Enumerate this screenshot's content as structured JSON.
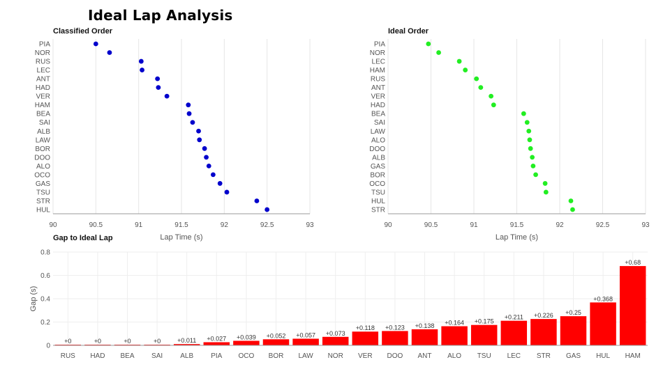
{
  "title": "Ideal Lap Analysis",
  "chart_data": [
    {
      "type": "scatter",
      "title": "Classified Order",
      "xlabel": "Lap Time (s)",
      "ylabel": "",
      "xlim": [
        90,
        93
      ],
      "xticks": [
        "90",
        "90.5",
        "91",
        "91.5",
        "92",
        "92.5",
        "93"
      ],
      "grid": true,
      "color": "#0000cc",
      "categories": [
        "PIA",
        "NOR",
        "RUS",
        "LEC",
        "ANT",
        "HAD",
        "VER",
        "HAM",
        "BEA",
        "SAI",
        "ALB",
        "LAW",
        "BOR",
        "DOO",
        "ALO",
        "OCO",
        "GAS",
        "TSU",
        "STR",
        "HUL"
      ],
      "values": [
        90.5,
        90.66,
        91.03,
        91.04,
        91.22,
        91.23,
        91.33,
        91.58,
        91.59,
        91.63,
        91.7,
        91.71,
        91.77,
        91.79,
        91.82,
        91.87,
        91.95,
        92.03,
        92.38,
        92.5
      ]
    },
    {
      "type": "scatter",
      "title": "Ideal Order",
      "xlabel": "Lap Time (s)",
      "ylabel": "",
      "xlim": [
        90,
        93
      ],
      "xticks": [
        "90",
        "90.5",
        "91",
        "91.5",
        "92",
        "92.5",
        "93"
      ],
      "grid": true,
      "color": "#22ee22",
      "categories": [
        "PIA",
        "NOR",
        "LEC",
        "HAM",
        "RUS",
        "ANT",
        "VER",
        "HAD",
        "BEA",
        "SAI",
        "LAW",
        "ALO",
        "DOO",
        "ALB",
        "GAS",
        "BOR",
        "OCO",
        "TSU",
        "HUL",
        "STR"
      ],
      "values": [
        90.47,
        90.59,
        90.83,
        90.9,
        91.03,
        91.08,
        91.2,
        91.23,
        91.58,
        91.62,
        91.64,
        91.65,
        91.66,
        91.68,
        91.69,
        91.72,
        91.83,
        91.84,
        92.13,
        92.15
      ]
    },
    {
      "type": "bar",
      "title": "Gap to Ideal Lap",
      "xlabel": "",
      "ylabel": "Gap (s)",
      "ylim": [
        0,
        0.8
      ],
      "yticks": [
        "0",
        "0.2",
        "0.4",
        "0.6",
        "0.8"
      ],
      "grid": true,
      "color": "#ff0000",
      "categories": [
        "RUS",
        "HAD",
        "BEA",
        "SAI",
        "ALB",
        "PIA",
        "OCO",
        "BOR",
        "LAW",
        "NOR",
        "VER",
        "DOO",
        "ANT",
        "ALO",
        "TSU",
        "LEC",
        "STR",
        "GAS",
        "HUL",
        "HAM"
      ],
      "values": [
        0,
        0,
        0,
        0,
        0.011,
        0.027,
        0.039,
        0.052,
        0.057,
        0.073,
        0.118,
        0.123,
        0.138,
        0.164,
        0.175,
        0.211,
        0.226,
        0.25,
        0.368,
        0.68
      ],
      "labels": [
        "+0",
        "+0",
        "+0",
        "+0",
        "+0.011",
        "+0.027",
        "+0.039",
        "+0.052",
        "+0.057",
        "+0.073",
        "+0.118",
        "+0.123",
        "+0.138",
        "+0.164",
        "+0.175",
        "+0.211",
        "+0.226",
        "+0.25",
        "+0.368",
        "+0.68"
      ]
    }
  ]
}
